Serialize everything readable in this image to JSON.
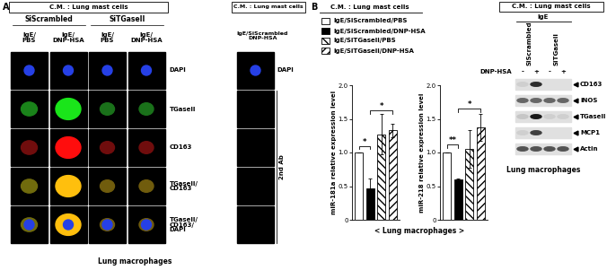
{
  "panel_A": {
    "label": "A",
    "header": "C.M. : Lung mast cells",
    "groups": [
      "SiScrambled",
      "SiTGaseII"
    ],
    "conditions": [
      "IgE/\nPBS",
      "IgE/\nDNP-HSA"
    ],
    "rows": [
      "DAPI",
      "TGaseII",
      "CD163",
      "TGaseII/\nCD163",
      "TGaseII/\nCD163/\nDAPI"
    ],
    "control": {
      "header": "C.M. : Lung mast cells",
      "condition": "IgE/SiScrambled\nDNP-HSA",
      "row": "DAPI",
      "side_label": "2nd Ab"
    },
    "footer": "Lung macrophages"
  },
  "panel_B": {
    "label": "B",
    "header": "C.M. : Lung mast cells",
    "key_entries": [
      {
        "name": "IgE/SiScrambled/PBS",
        "color": "#ffffff"
      },
      {
        "name": "IgE/SiScrambled/DNP-HSA",
        "color": "#000000"
      },
      {
        "name": "IgE/SiTGaseII/PBS",
        "color": "#ffffff"
      },
      {
        "name": "IgE/SiTGaseII/DNP-HSA",
        "color": "#ffffff"
      }
    ],
    "xlabel": "< Lung macrophages >"
  },
  "chart_data": [
    {
      "type": "bar",
      "ylabel": "miR-181a relative expression level",
      "categories": [
        null,
        null,
        null,
        null
      ],
      "values": [
        1.0,
        0.47,
        1.27,
        1.33
      ],
      "errors": [
        0,
        0.15,
        0.3,
        0.1
      ],
      "colors": [
        "#ffffff",
        "#000000",
        "#ffffff",
        "#ffffff"
      ],
      "ylim": [
        0,
        2.0
      ],
      "yticks": [
        0,
        0.5,
        1.0,
        1.5,
        2.0
      ],
      "tick_labels": "y",
      "significance": [
        {
          "from": 0,
          "to": 1,
          "height": 1.1,
          "label": "*"
        },
        {
          "from": 1,
          "to": 3,
          "height": 1.62,
          "label": "*"
        }
      ]
    },
    {
      "type": "bar",
      "ylabel": "miR-218 relative expression level",
      "categories": [
        null,
        null,
        null,
        null
      ],
      "values": [
        1.0,
        0.6,
        1.05,
        1.37
      ],
      "errors": [
        0,
        0.02,
        0.28,
        0.2
      ],
      "colors": [
        "#ffffff",
        "#000000",
        "#ffffff",
        "#ffffff"
      ],
      "ylim": [
        0,
        2.0
      ],
      "yticks": [
        0,
        0.5,
        1.0,
        1.5,
        2.0
      ],
      "tick_labels": "y",
      "significance": [
        {
          "from": 0,
          "to": 1,
          "height": 1.12,
          "label": "**"
        },
        {
          "from": 1,
          "to": 3,
          "height": 1.65,
          "label": "*"
        }
      ]
    }
  ],
  "blot": {
    "header": "C.M. : Lung mast cells",
    "treatment": "IgE",
    "lane_groups": [
      "SiScrambled",
      "SiTGaseII"
    ],
    "stimulus": "DNP-HSA",
    "lane_signs": [
      "-",
      "+",
      "-",
      "+"
    ],
    "bands": [
      "CD163",
      "iNOS",
      "TGaseII",
      "MCP1",
      "Actin"
    ],
    "footer": "Lung macrophages"
  }
}
